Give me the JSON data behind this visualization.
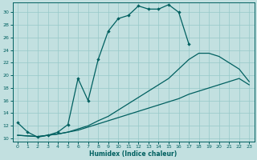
{
  "xlabel": "Humidex (Indice chaleur)",
  "bg_color": "#c2e0e0",
  "grid_color": "#96c8c8",
  "line_color": "#006060",
  "xlim": [
    -0.5,
    23.5
  ],
  "ylim": [
    9.5,
    31.5
  ],
  "xticks": [
    0,
    1,
    2,
    3,
    4,
    5,
    6,
    7,
    8,
    9,
    10,
    11,
    12,
    13,
    14,
    15,
    16,
    17,
    18,
    19,
    20,
    21,
    22,
    23
  ],
  "yticks": [
    10,
    12,
    14,
    16,
    18,
    20,
    22,
    24,
    26,
    28,
    30
  ],
  "curve1_x": [
    0,
    1,
    2,
    3,
    4,
    5,
    6,
    7,
    8,
    9,
    10,
    11,
    12,
    13,
    14,
    15,
    16,
    17
  ],
  "curve1_y": [
    12.5,
    11.0,
    10.2,
    10.5,
    11.0,
    12.2,
    19.5,
    16.0,
    22.5,
    27.0,
    29.0,
    29.5,
    31.0,
    30.5,
    30.5,
    31.2,
    30.0,
    25.0
  ],
  "curve2_x": [
    0,
    1,
    2,
    3,
    4,
    5,
    6,
    7,
    8,
    9,
    10,
    11,
    12,
    13,
    14,
    15,
    16,
    17,
    18,
    19,
    20,
    21,
    22,
    23
  ],
  "curve2_y": [
    10.5,
    10.4,
    10.3,
    10.5,
    10.7,
    11.0,
    11.5,
    12.0,
    12.8,
    13.5,
    14.5,
    15.5,
    16.5,
    17.5,
    18.5,
    19.5,
    21.0,
    22.5,
    23.5,
    23.5,
    23.0,
    22.0,
    21.0,
    19.0
  ],
  "curve3_x": [
    0,
    1,
    2,
    3,
    4,
    5,
    6,
    7,
    8,
    9,
    10,
    11,
    12,
    13,
    14,
    15,
    16,
    17,
    18,
    19,
    20,
    21,
    22,
    23
  ],
  "curve3_y": [
    10.5,
    10.4,
    10.3,
    10.5,
    10.7,
    11.0,
    11.3,
    11.8,
    12.3,
    12.8,
    13.3,
    13.8,
    14.3,
    14.8,
    15.3,
    15.8,
    16.3,
    17.0,
    17.5,
    18.0,
    18.5,
    19.0,
    19.5,
    18.5
  ]
}
